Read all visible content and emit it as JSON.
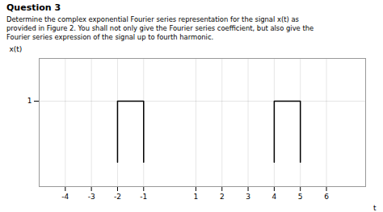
{
  "chart_data": {
    "type": "line",
    "title": "Question 3",
    "subtitle": [
      "Determine the complex exponential Fourier series representation for the signal x(t) as",
      "provided in Figure 2. You shall not only give the Fourier series coefficient, but also give the",
      "Fourier series expression of the signal up to fourth harmonic."
    ],
    "x_label": "t",
    "y_label": "x(t)",
    "series": [
      {
        "color": "#000000",
        "x": [
          -2,
          -2,
          -1,
          -1
        ],
        "values": [
          0,
          1,
          1,
          0
        ]
      },
      {
        "color": "#000000",
        "x": [
          4,
          4,
          5,
          5
        ],
        "values": [
          0,
          1,
          1,
          0
        ]
      }
    ],
    "xlim": [
      -5.0,
      7.5
    ],
    "ylim": [
      -0.4,
      1.7
    ],
    "xticks": [
      -4,
      -3,
      -2,
      -1,
      1,
      2,
      3,
      4,
      5,
      6
    ],
    "yticks": [
      1
    ],
    "grid": true
  }
}
